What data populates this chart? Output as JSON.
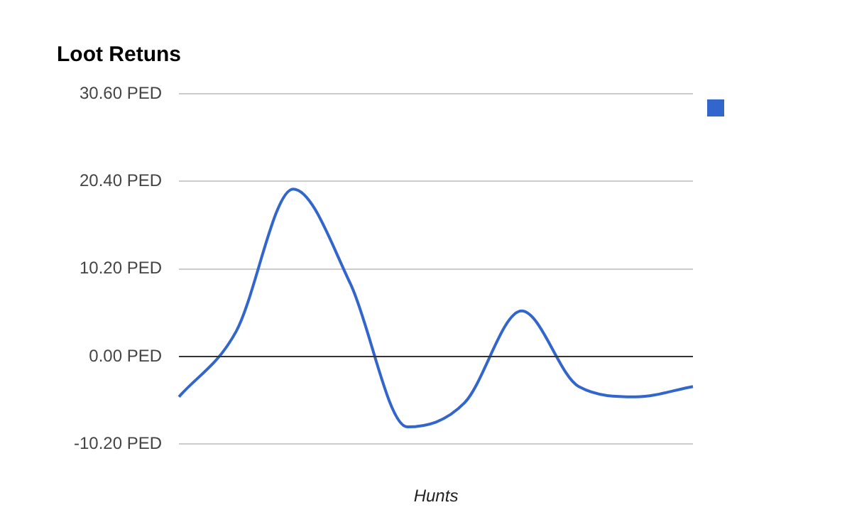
{
  "chart_data": {
    "type": "line",
    "title": "Loot Retuns",
    "xlabel": "Hunts",
    "categories": [
      null,
      null,
      null,
      null,
      null,
      null,
      null,
      null,
      null,
      null
    ],
    "series": [
      {
        "color": "#3366cc",
        "values": [
          -4.7,
          2.9,
          19.5,
          8.5,
          -8.2,
          -5.4,
          5.3,
          -3.5,
          -4.7,
          -3.5
        ]
      }
    ],
    "ylim": [
      -10.2,
      30.6
    ],
    "yticks": [
      {
        "value": -10.2,
        "label": "-10.20 PED"
      },
      {
        "value": 0,
        "label": "0.00 PED"
      },
      {
        "value": 10.2,
        "label": "10.20 PED"
      },
      {
        "value": 20.4,
        "label": "20.40 PED"
      },
      {
        "value": 30.6,
        "label": "30.60 PED"
      }
    ],
    "grid": "y",
    "marker": "none",
    "line_style": "solid"
  }
}
